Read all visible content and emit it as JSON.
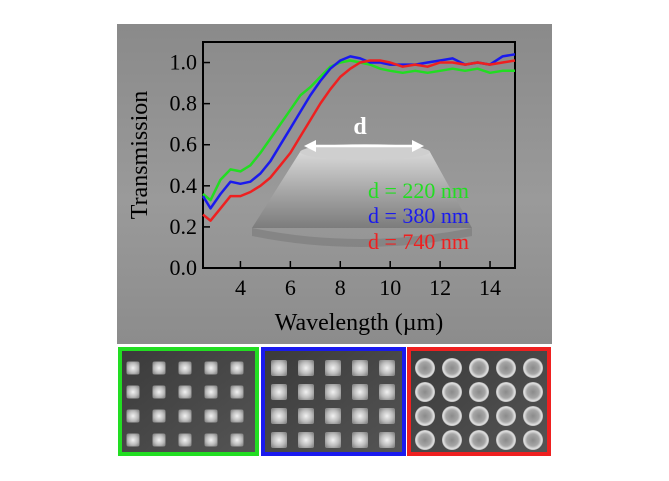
{
  "chart_data": {
    "type": "line",
    "xlabel": "Wavelength (µm)",
    "ylabel": "Transmission",
    "xlim": [
      2.5,
      15
    ],
    "ylim": [
      0.0,
      1.1
    ],
    "xticks": [
      4,
      6,
      8,
      10,
      12,
      14
    ],
    "yticks": [
      0.0,
      0.2,
      0.4,
      0.6,
      0.8,
      1.0
    ],
    "xtick_labels": [
      "4",
      "6",
      "8",
      "10",
      "12",
      "14"
    ],
    "ytick_labels": [
      "0.0",
      "0.2",
      "0.4",
      "0.6",
      "0.8",
      "1.0"
    ],
    "grid": false,
    "legend_placement": "right",
    "annotation": "d",
    "series": [
      {
        "name": "d = 220 nm",
        "color": "#22dd22",
        "x": [
          2.5,
          2.8,
          3.2,
          3.6,
          4.0,
          4.4,
          4.8,
          5.2,
          5.6,
          6.0,
          6.4,
          6.8,
          7.2,
          7.6,
          8.0,
          8.4,
          8.8,
          9.2,
          9.6,
          10.0,
          10.5,
          11.0,
          11.5,
          12.0,
          12.5,
          13.0,
          13.5,
          14.0,
          14.5,
          15.0
        ],
        "y": [
          0.36,
          0.33,
          0.43,
          0.48,
          0.47,
          0.5,
          0.56,
          0.63,
          0.7,
          0.77,
          0.84,
          0.88,
          0.93,
          0.98,
          1.0,
          1.01,
          1.0,
          0.99,
          0.97,
          0.96,
          0.95,
          0.96,
          0.95,
          0.96,
          0.97,
          0.96,
          0.97,
          0.95,
          0.96,
          0.96
        ]
      },
      {
        "name": "d = 380 nm",
        "color": "#1a1aee",
        "x": [
          2.5,
          2.8,
          3.2,
          3.6,
          4.0,
          4.4,
          4.8,
          5.2,
          5.6,
          6.0,
          6.4,
          6.8,
          7.2,
          7.6,
          8.0,
          8.4,
          8.8,
          9.2,
          9.6,
          10.0,
          10.5,
          11.0,
          11.5,
          12.0,
          12.5,
          13.0,
          13.5,
          14.0,
          14.5,
          15.0
        ],
        "y": [
          0.35,
          0.29,
          0.36,
          0.42,
          0.41,
          0.42,
          0.46,
          0.52,
          0.6,
          0.68,
          0.76,
          0.84,
          0.91,
          0.97,
          1.01,
          1.03,
          1.02,
          1.0,
          1.0,
          0.99,
          0.99,
          0.99,
          1.0,
          1.01,
          1.02,
          0.99,
          1.0,
          0.99,
          1.03,
          1.04
        ]
      },
      {
        "name": "d = 740 nm",
        "color": "#ee2020",
        "x": [
          2.5,
          2.8,
          3.2,
          3.6,
          4.0,
          4.4,
          4.8,
          5.2,
          5.6,
          6.0,
          6.4,
          6.8,
          7.2,
          7.6,
          8.0,
          8.4,
          8.8,
          9.2,
          9.6,
          10.0,
          10.5,
          11.0,
          11.5,
          12.0,
          12.5,
          13.0,
          13.5,
          14.0,
          14.5,
          15.0
        ],
        "y": [
          0.26,
          0.23,
          0.29,
          0.35,
          0.35,
          0.37,
          0.4,
          0.44,
          0.5,
          0.56,
          0.64,
          0.72,
          0.8,
          0.87,
          0.93,
          0.97,
          1.0,
          1.01,
          1.01,
          1.0,
          0.98,
          0.99,
          0.98,
          1.0,
          1.0,
          0.99,
          1.0,
          0.99,
          1.0,
          1.01
        ]
      }
    ]
  },
  "colors": {
    "frame_220": "#22dd22",
    "frame_380": "#1a1aee",
    "frame_740": "#ee2020"
  }
}
